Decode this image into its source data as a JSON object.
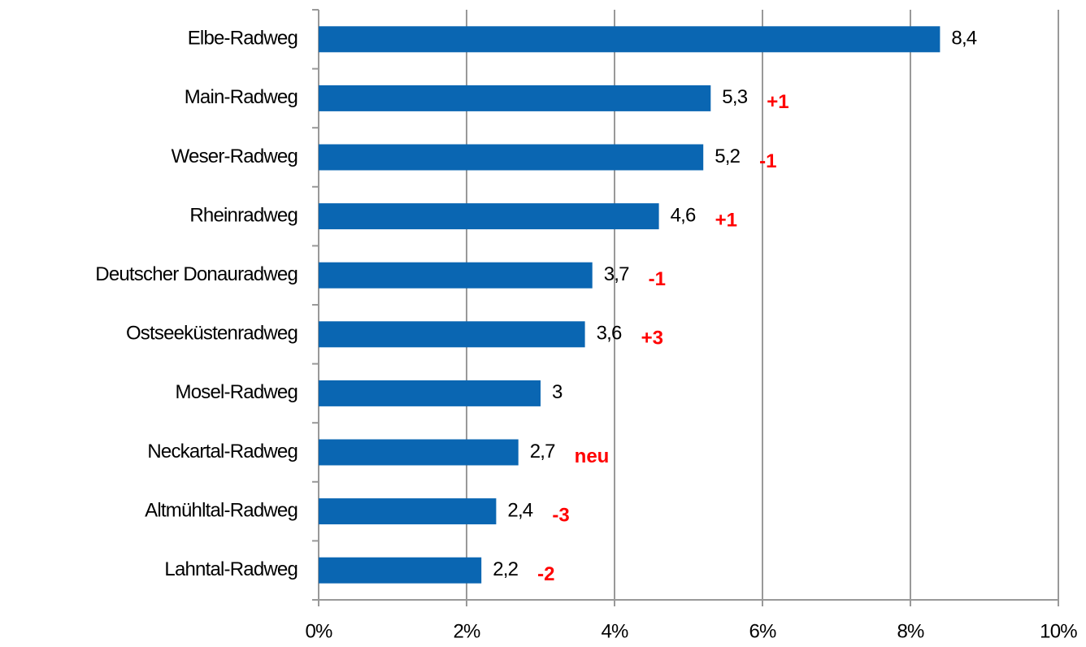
{
  "chart_data": {
    "type": "bar",
    "orientation": "horizontal",
    "categories": [
      "Elbe-Radweg",
      "Main-Radweg",
      "Weser-Radweg",
      "Rheinradweg",
      "Deutscher Donauradweg",
      "Ostseeküstenradweg",
      "Mosel-Radweg",
      "Neckartal-Radweg",
      "Altmühltal-Radweg",
      "Lahntal-Radweg"
    ],
    "values": [
      8.4,
      5.3,
      5.2,
      4.6,
      3.7,
      3.6,
      3,
      2.7,
      2.4,
      2.2
    ],
    "value_labels": [
      "8,4",
      "5,3",
      "5,2",
      "4,6",
      "3,7",
      "3,6",
      "3",
      "2,7",
      "2,4",
      "2,2"
    ],
    "annotations": [
      null,
      "+1",
      "-1",
      "+1",
      "-1",
      "+3",
      null,
      "neu",
      "-3",
      "-2"
    ],
    "color": "#0a66b2",
    "xlim": [
      0,
      10
    ],
    "xticks": [
      {
        "value": 0,
        "label": "0%"
      },
      {
        "value": 2,
        "label": "2%"
      },
      {
        "value": 4,
        "label": "4%"
      },
      {
        "value": 6,
        "label": "6%"
      },
      {
        "value": 8,
        "label": "8%"
      },
      {
        "value": 10,
        "label": "10%"
      }
    ],
    "grid": true
  }
}
